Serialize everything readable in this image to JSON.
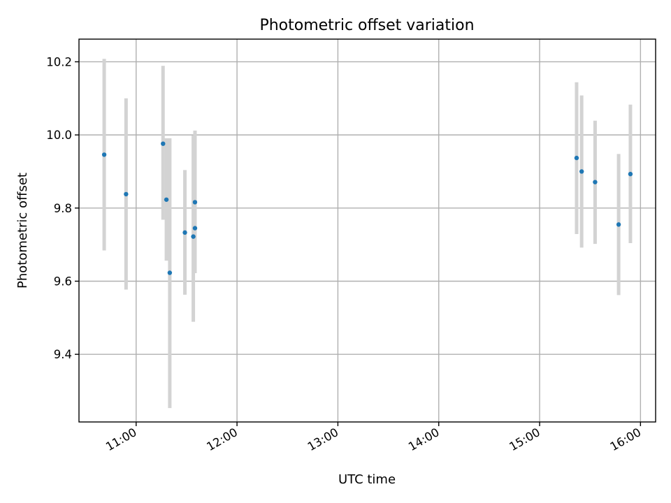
{
  "chart_data": {
    "type": "scatter",
    "title": "Photometric offset variation",
    "xlabel": "UTC time",
    "ylabel": "Photometric offset",
    "x_unit": "time of day (UTC)",
    "xlim": [
      "10:26",
      "16:09"
    ],
    "ylim": [
      9.215,
      10.262
    ],
    "x_ticks": [
      "11:00",
      "12:00",
      "13:00",
      "14:00",
      "15:00",
      "16:00"
    ],
    "y_ticks": [
      "9.4",
      "9.6",
      "9.8",
      "10.0",
      "10.2"
    ],
    "grid": true,
    "colors": {
      "point": "#1f77b4",
      "errorbar": "#d3d3d3",
      "grid": "#b0b0b0"
    },
    "points": [
      {
        "x": "10:41",
        "y": 9.946,
        "ylow": 9.684,
        "yhigh": 10.208
      },
      {
        "x": "10:54",
        "y": 9.838,
        "ylow": 9.577,
        "yhigh": 10.1
      },
      {
        "x": "11:16",
        "y": 9.976,
        "ylow": 9.768,
        "yhigh": 10.189
      },
      {
        "x": "11:18",
        "y": 9.823,
        "ylow": 9.656,
        "yhigh": 9.991
      },
      {
        "x": "11:20",
        "y": 9.623,
        "ylow": 9.253,
        "yhigh": 9.991
      },
      {
        "x": "11:29",
        "y": 9.733,
        "ylow": 9.563,
        "yhigh": 9.904
      },
      {
        "x": "11:34",
        "y": 9.722,
        "ylow": 9.489,
        "yhigh": 9.998
      },
      {
        "x": "11:35",
        "y": 9.745,
        "ylow": 9.622,
        "yhigh": 10.01
      },
      {
        "x": "11:35",
        "y": 9.816,
        "ylow": 9.622,
        "yhigh": 10.012
      },
      {
        "x": "15:22",
        "y": 9.937,
        "ylow": 9.729,
        "yhigh": 10.144
      },
      {
        "x": "15:25",
        "y": 9.9,
        "ylow": 9.692,
        "yhigh": 10.108
      },
      {
        "x": "15:33",
        "y": 9.871,
        "ylow": 9.702,
        "yhigh": 10.039
      },
      {
        "x": "15:47",
        "y": 9.755,
        "ylow": 9.562,
        "yhigh": 9.948
      },
      {
        "x": "15:54",
        "y": 9.893,
        "ylow": 9.704,
        "yhigh": 10.083
      }
    ]
  }
}
